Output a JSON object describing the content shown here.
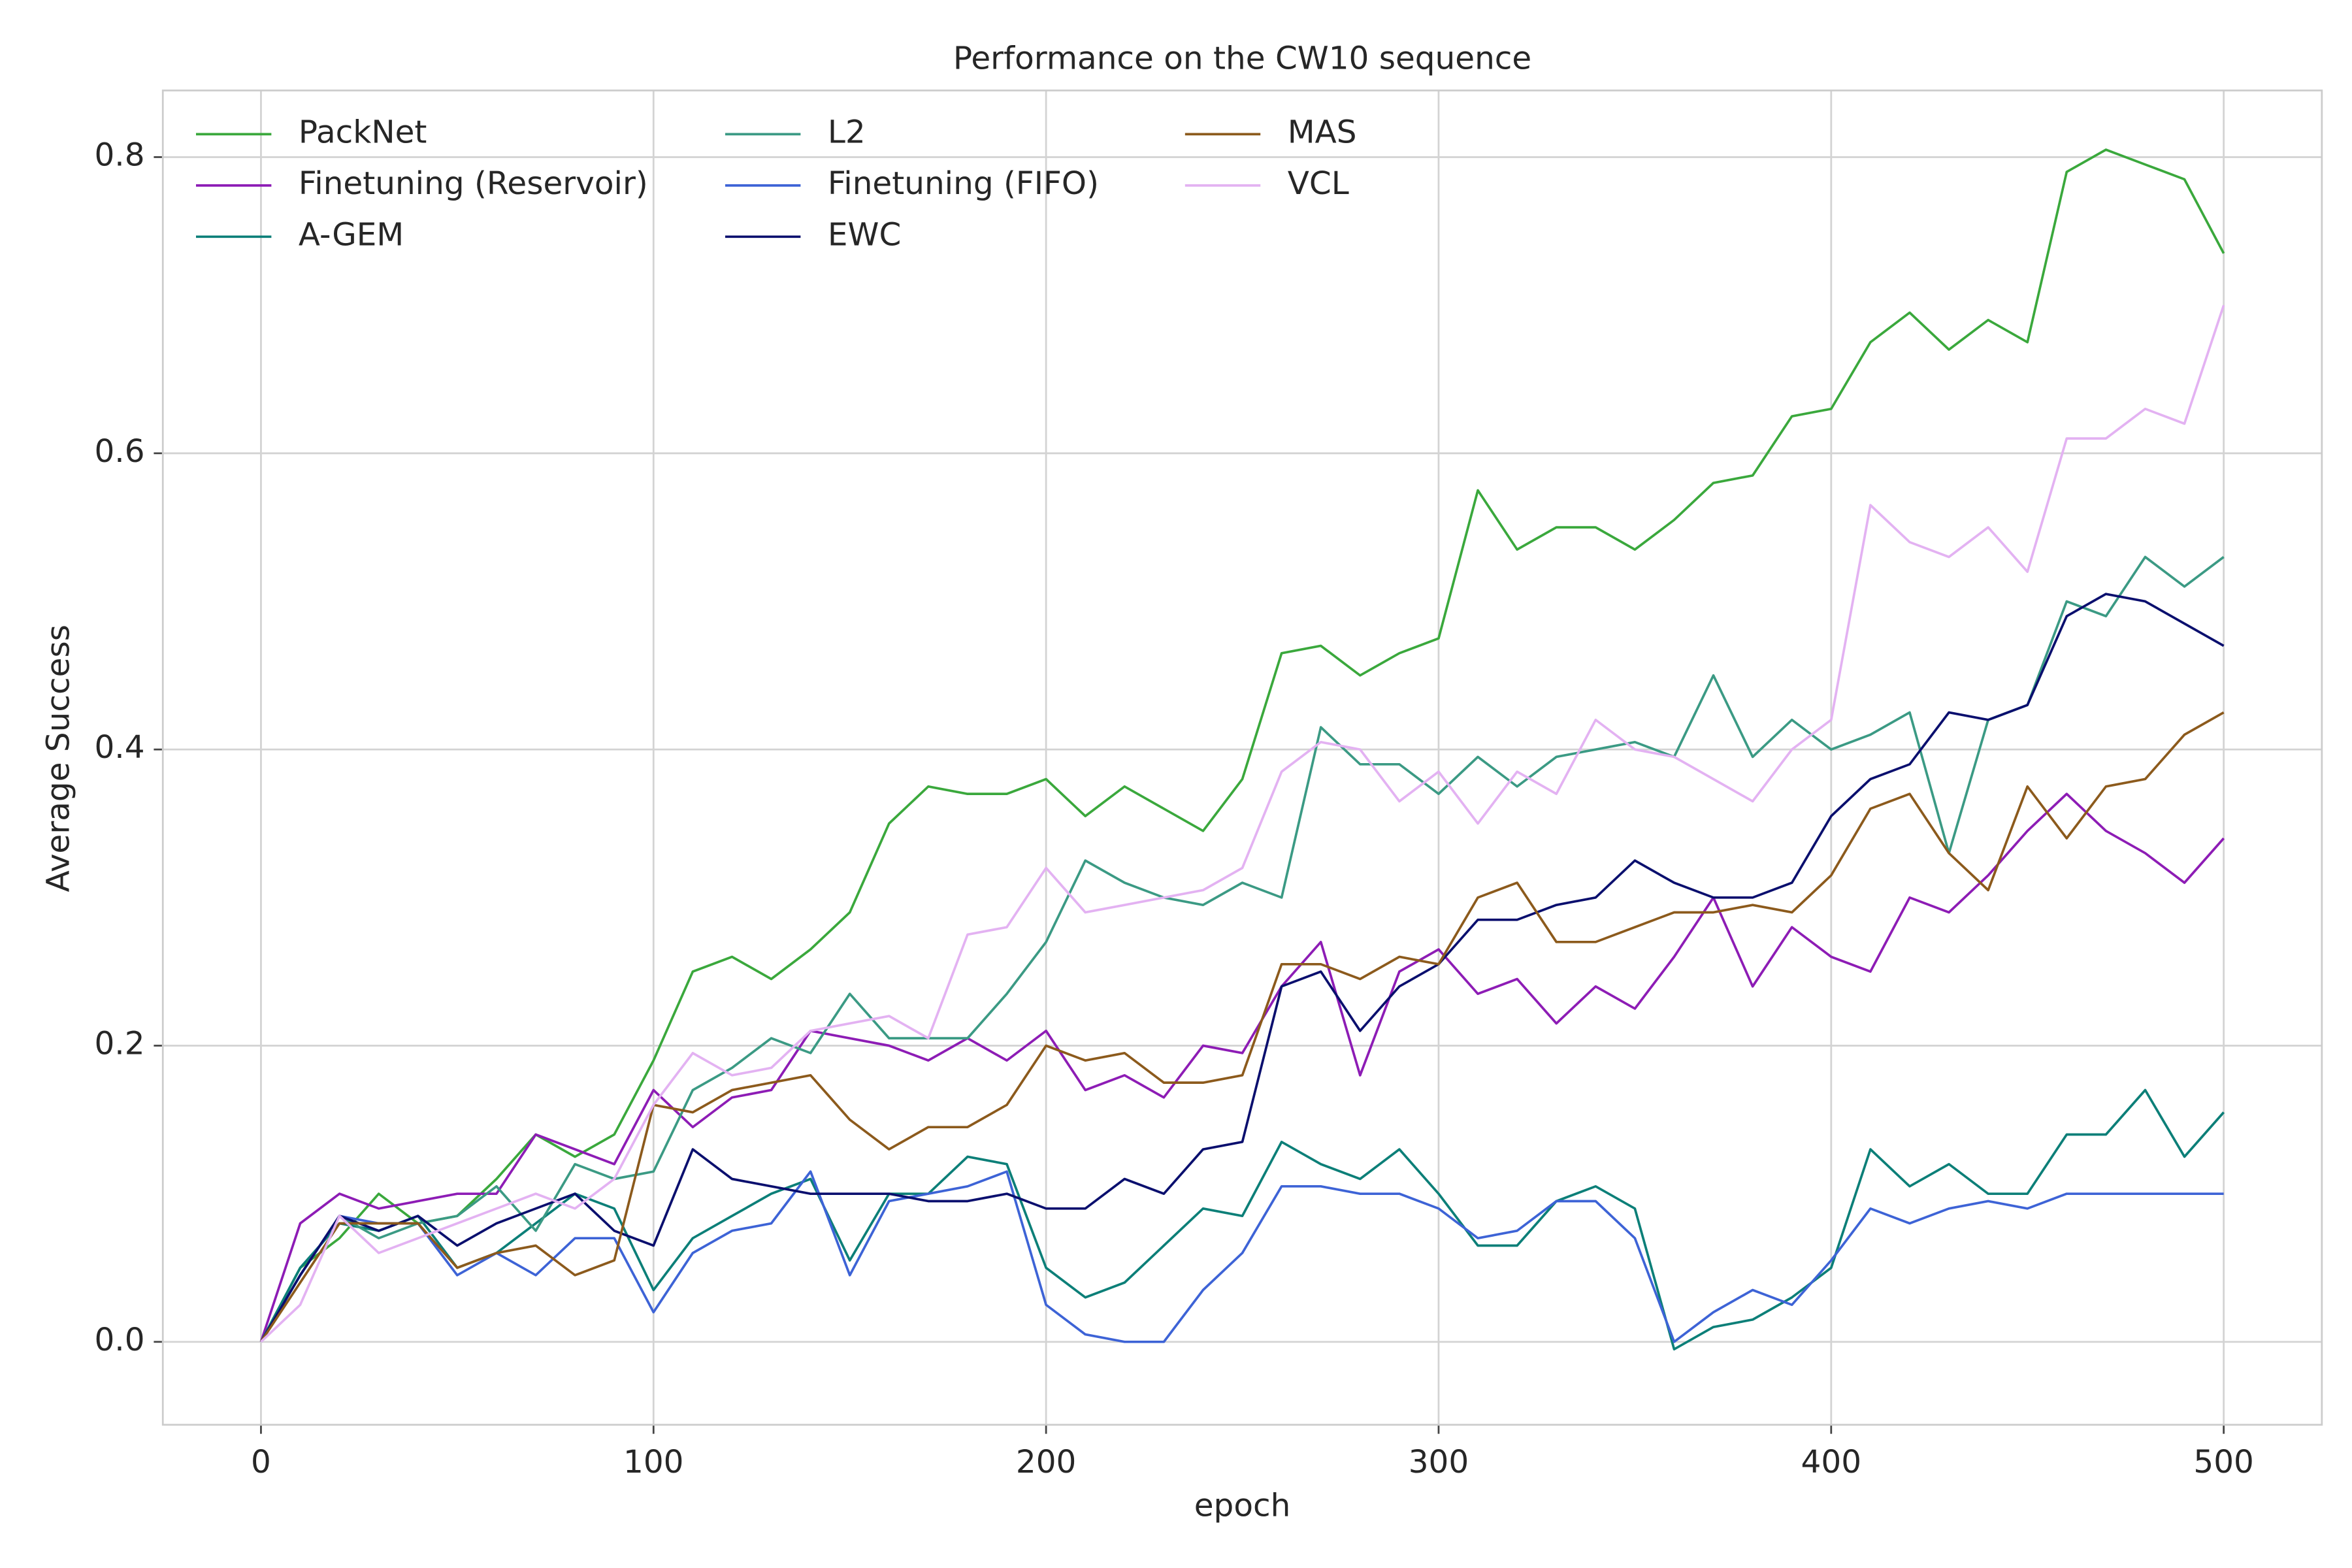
{
  "chart_data": {
    "type": "line",
    "title": "Performance on the CW10 sequence",
    "x_label": "epoch",
    "y_label": "Average Success",
    "x": [
      0,
      10,
      20,
      30,
      40,
      50,
      60,
      70,
      80,
      90,
      100,
      110,
      120,
      130,
      140,
      150,
      160,
      170,
      180,
      190,
      200,
      210,
      220,
      230,
      240,
      250,
      260,
      270,
      280,
      290,
      300,
      310,
      320,
      330,
      340,
      350,
      360,
      370,
      380,
      390,
      400,
      410,
      420,
      430,
      440,
      450,
      460,
      470,
      480,
      490,
      500
    ],
    "xlim": [
      -25,
      525
    ],
    "ylim": [
      -0.056,
      0.845
    ],
    "xticks": [
      0,
      100,
      200,
      300,
      400,
      500
    ],
    "yticks": [
      {
        "value": 0,
        "label": "0.0"
      },
      0.2,
      0.4,
      0.6,
      0.8
    ],
    "grid": true,
    "legend": {
      "loc": "upper left",
      "ncol": 3
    },
    "series": [
      {
        "name": "PackNet",
        "color": "#3aa83c",
        "values": [
          0.0,
          0.05,
          0.07,
          0.1,
          0.08,
          0.085,
          0.11,
          0.14,
          0.125,
          0.14,
          0.19,
          0.25,
          0.26,
          0.245,
          0.265,
          0.29,
          0.35,
          0.375,
          0.37,
          0.37,
          0.38,
          0.355,
          0.375,
          0.36,
          0.345,
          0.38,
          0.465,
          0.47,
          0.45,
          0.465,
          0.475,
          0.575,
          0.535,
          0.55,
          0.55,
          0.535,
          0.555,
          0.58,
          0.585,
          0.625,
          0.63,
          0.675,
          0.695,
          0.67,
          0.69,
          0.675,
          0.79,
          0.805,
          0.795,
          0.785,
          0.735
        ]
      },
      {
        "name": "Finetuning (Reservoir)",
        "color": "#8d1cb5",
        "values": [
          0.0,
          0.08,
          0.1,
          0.09,
          0.095,
          0.1,
          0.1,
          0.14,
          0.13,
          0.12,
          0.17,
          0.145,
          0.165,
          0.17,
          0.21,
          0.205,
          0.2,
          0.19,
          0.205,
          0.19,
          0.21,
          0.17,
          0.18,
          0.165,
          0.2,
          0.195,
          0.24,
          0.27,
          0.18,
          0.25,
          0.265,
          0.235,
          0.245,
          0.215,
          0.24,
          0.225,
          0.26,
          0.3,
          0.24,
          0.28,
          0.26,
          0.25,
          0.3,
          0.29,
          0.315,
          0.345,
          0.37,
          0.345,
          0.33,
          0.31,
          0.34
        ]
      },
      {
        "name": "A-GEM",
        "color": "#0c7f78",
        "values": [
          0.0,
          0.05,
          0.08,
          0.075,
          0.085,
          0.05,
          0.06,
          0.08,
          0.1,
          0.09,
          0.035,
          0.07,
          0.085,
          0.1,
          0.11,
          0.055,
          0.1,
          0.1,
          0.125,
          0.12,
          0.05,
          0.03,
          0.04,
          0.065,
          0.09,
          0.085,
          0.135,
          0.12,
          0.11,
          0.13,
          0.1,
          0.065,
          0.065,
          0.095,
          0.105,
          0.09,
          -0.005,
          0.01,
          0.015,
          0.03,
          0.05,
          0.13,
          0.105,
          0.12,
          0.1,
          0.1,
          0.14,
          0.14,
          0.17,
          0.125,
          0.155
        ]
      },
      {
        "name": "L2",
        "color": "#3b9a84",
        "values": [
          0.0,
          0.045,
          0.085,
          0.07,
          0.08,
          0.085,
          0.105,
          0.075,
          0.12,
          0.11,
          0.115,
          0.17,
          0.185,
          0.205,
          0.195,
          0.235,
          0.205,
          0.205,
          0.205,
          0.235,
          0.27,
          0.325,
          0.31,
          0.3,
          0.295,
          0.31,
          0.3,
          0.415,
          0.39,
          0.39,
          0.37,
          0.395,
          0.375,
          0.395,
          0.4,
          0.405,
          0.395,
          0.45,
          0.395,
          0.42,
          0.4,
          0.41,
          0.425,
          0.33,
          0.42,
          0.43,
          0.5,
          0.49,
          0.53,
          0.51,
          0.53
        ]
      },
      {
        "name": "Finetuning (FIFO)",
        "color": "#3d63d6",
        "values": [
          0.0,
          0.045,
          0.085,
          0.08,
          0.08,
          0.045,
          0.06,
          0.045,
          0.07,
          0.07,
          0.02,
          0.06,
          0.075,
          0.08,
          0.115,
          0.045,
          0.095,
          0.1,
          0.105,
          0.115,
          0.025,
          0.005,
          0.0,
          0.0,
          0.035,
          0.06,
          0.105,
          0.105,
          0.1,
          0.1,
          0.09,
          0.07,
          0.075,
          0.095,
          0.095,
          0.07,
          0.0,
          0.02,
          0.035,
          0.025,
          0.055,
          0.09,
          0.08,
          0.09,
          0.095,
          0.09,
          0.1,
          0.1,
          0.1,
          0.1,
          0.1
        ]
      },
      {
        "name": "EWC",
        "color": "#0a0f6e",
        "values": [
          0.0,
          0.045,
          0.085,
          0.075,
          0.085,
          0.065,
          0.08,
          0.09,
          0.1,
          0.075,
          0.065,
          0.13,
          0.11,
          0.105,
          0.1,
          0.1,
          0.1,
          0.095,
          0.095,
          0.1,
          0.09,
          0.09,
          0.11,
          0.1,
          0.13,
          0.135,
          0.24,
          0.25,
          0.21,
          0.24,
          0.255,
          0.285,
          0.285,
          0.295,
          0.3,
          0.325,
          0.31,
          0.3,
          0.3,
          0.31,
          0.355,
          0.38,
          0.39,
          0.425,
          0.42,
          0.43,
          0.49,
          0.505,
          0.5,
          0.485,
          0.47
        ]
      },
      {
        "name": "MAS",
        "color": "#8c5a1c",
        "values": [
          0.0,
          0.04,
          0.08,
          0.08,
          0.08,
          0.05,
          0.06,
          0.065,
          0.045,
          0.055,
          0.16,
          0.155,
          0.17,
          0.175,
          0.18,
          0.15,
          0.13,
          0.145,
          0.145,
          0.16,
          0.2,
          0.19,
          0.195,
          0.175,
          0.175,
          0.18,
          0.255,
          0.255,
          0.245,
          0.26,
          0.255,
          0.3,
          0.31,
          0.27,
          0.27,
          0.28,
          0.29,
          0.29,
          0.295,
          0.29,
          0.315,
          0.36,
          0.37,
          0.33,
          0.305,
          0.375,
          0.34,
          0.375,
          0.38,
          0.41,
          0.425
        ]
      },
      {
        "name": "VCL",
        "color": "#e3b2f2",
        "values": [
          0.0,
          0.025,
          0.085,
          0.06,
          0.07,
          0.08,
          0.09,
          0.1,
          0.09,
          0.11,
          0.16,
          0.195,
          0.18,
          0.185,
          0.21,
          0.215,
          0.22,
          0.205,
          0.275,
          0.28,
          0.32,
          0.29,
          0.295,
          0.3,
          0.305,
          0.32,
          0.385,
          0.405,
          0.4,
          0.365,
          0.385,
          0.35,
          0.385,
          0.37,
          0.42,
          0.4,
          0.395,
          0.38,
          0.365,
          0.4,
          0.42,
          0.565,
          0.54,
          0.53,
          0.55,
          0.52,
          0.61,
          0.61,
          0.63,
          0.62,
          0.7
        ]
      }
    ]
  }
}
